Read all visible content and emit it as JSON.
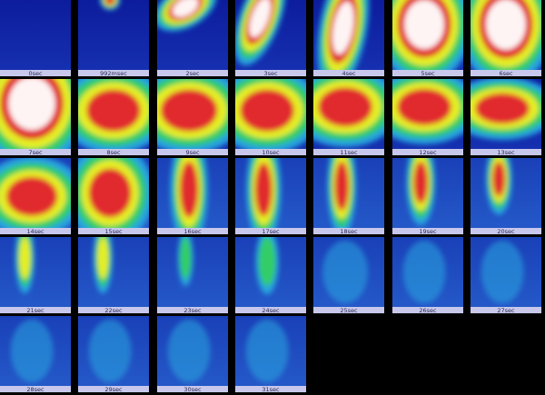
{
  "frames": [
    "0sec",
    "992msec",
    "2sec",
    "3sec",
    "4sec",
    "5sec",
    "6sec",
    "7sec",
    "8sec",
    "9sec",
    "10sec",
    "11sec",
    "12sec",
    "13sec",
    "14sec",
    "15sec",
    "16sec",
    "17sec",
    "18sec",
    "19sec",
    "20sec",
    "21sec",
    "22sec",
    "23sec",
    "24sec",
    "25sec",
    "26sec",
    "27sec",
    "28sec",
    "29sec",
    "30sec",
    "31sec"
  ]
}
